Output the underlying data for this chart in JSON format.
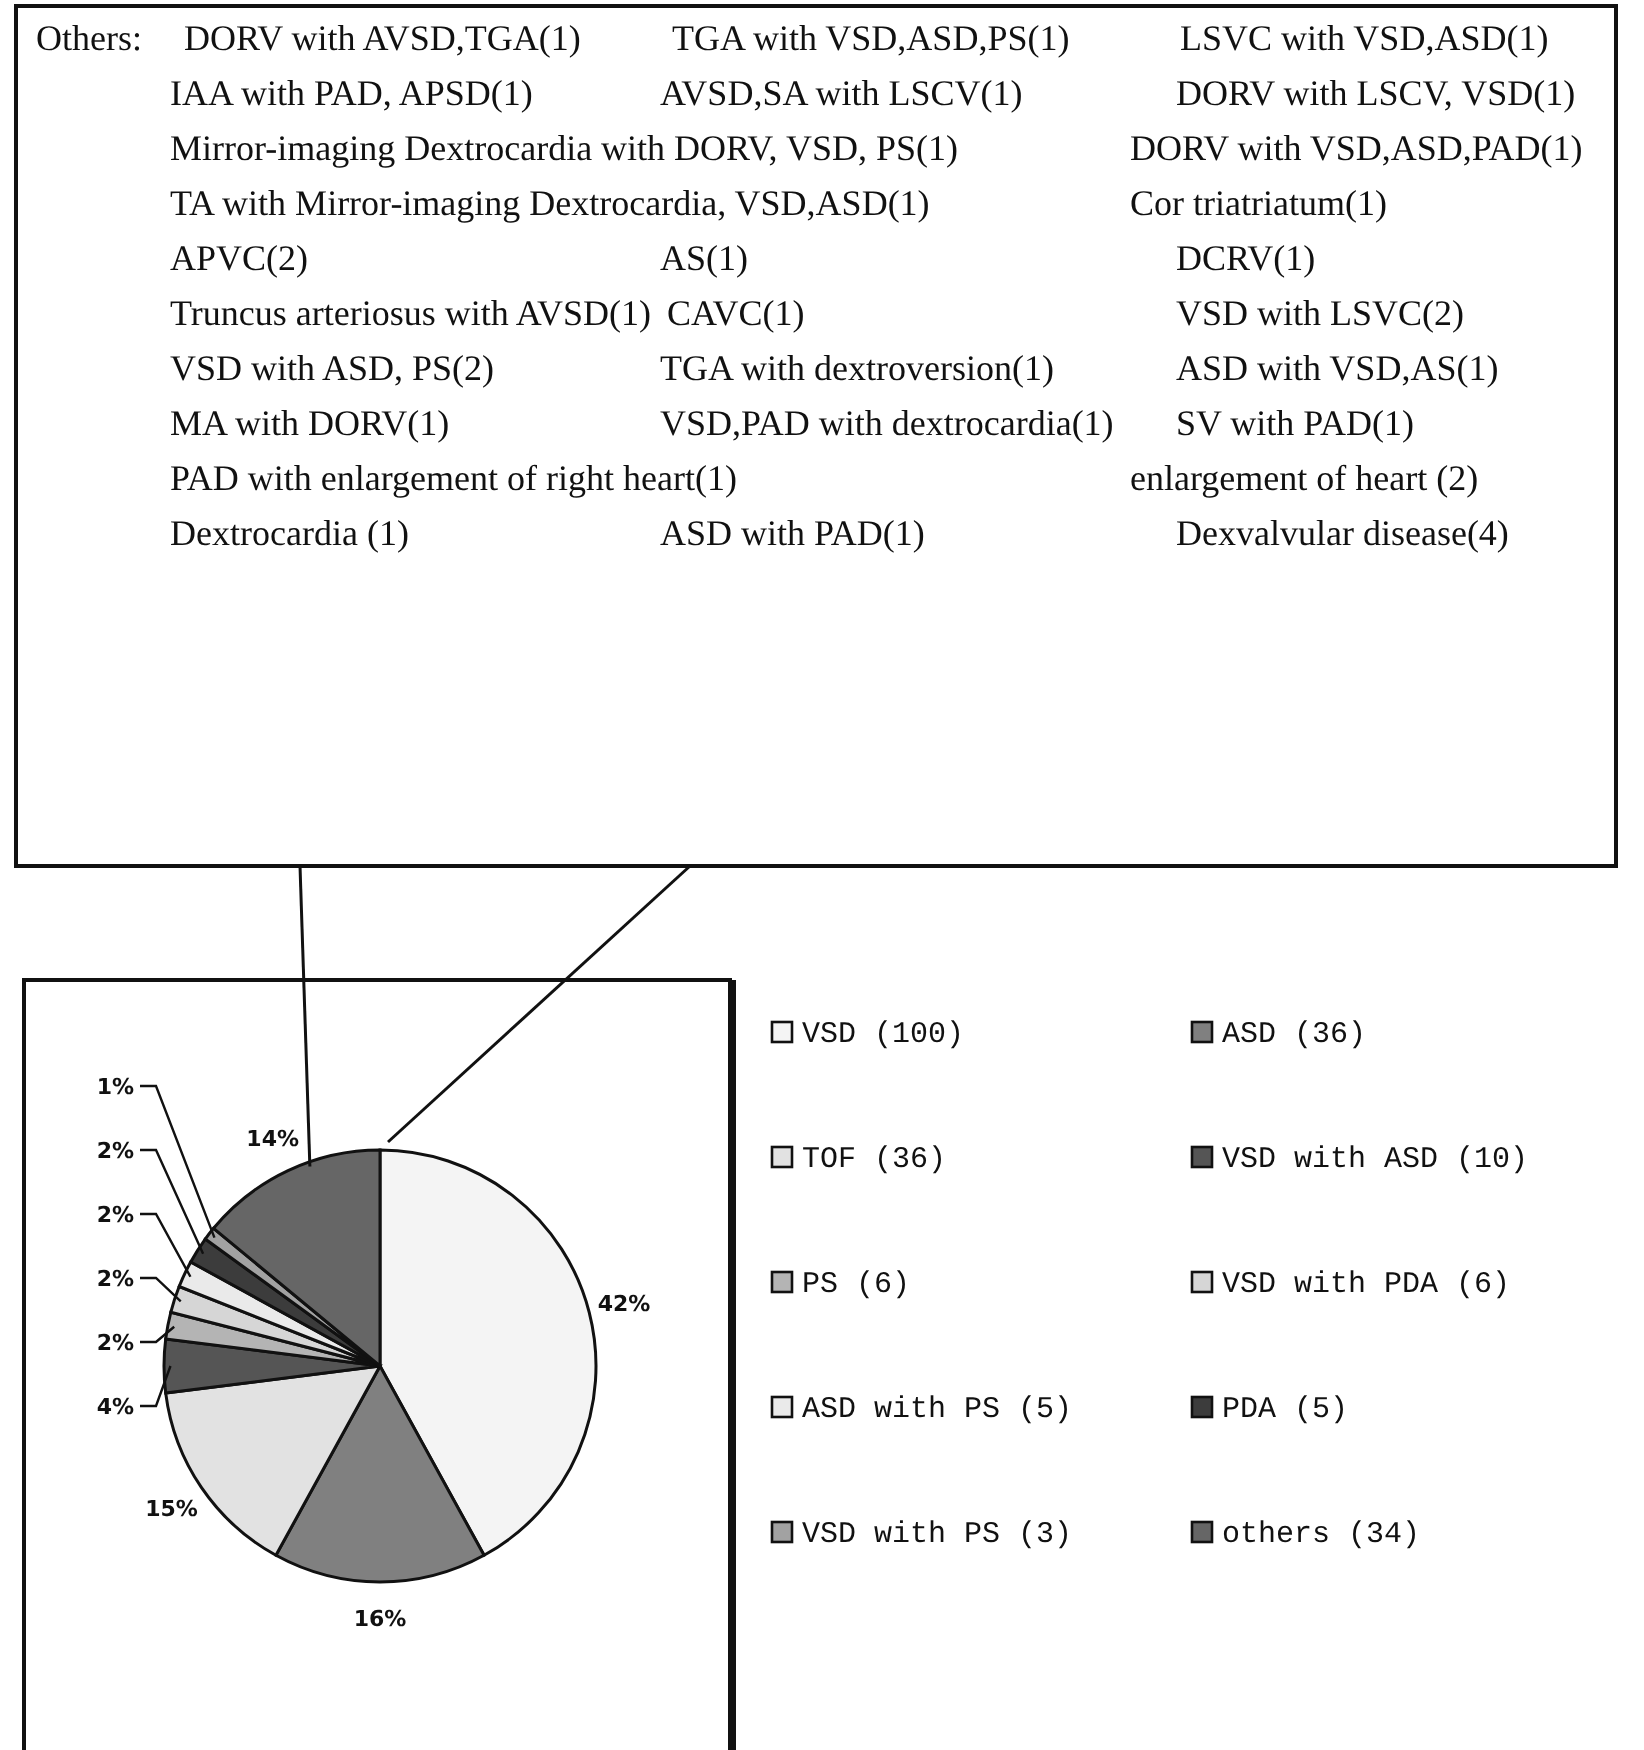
{
  "chart_data": {
    "type": "pie",
    "categories": [
      "VSD (100)",
      "ASD (36)",
      "TOF (36)",
      "VSD with ASD (10)",
      "PS (6)",
      "VSD with PDA (6)",
      "ASD with PS (5)",
      "PDA (5)",
      "VSD with PS (3)",
      "others (34)"
    ],
    "values": [
      42,
      16,
      15,
      4,
      2,
      2,
      2,
      2,
      1,
      14
    ],
    "colors": [
      "#f4f4f4",
      "#808080",
      "#e2e2e2",
      "#555555",
      "#b4b4b4",
      "#d6d6d6",
      "#eaeaea",
      "#3c3c3c",
      "#a2a2a2",
      "#666666"
    ],
    "value_labels": [
      "42%",
      "16%",
      "15%",
      "4%",
      "2%",
      "2%",
      "2%",
      "2%",
      "1%",
      "14%"
    ],
    "legend": "right",
    "annotations": [
      "Others:",
      "DORV with AVSD,TGA(1)",
      "TGA with VSD,ASD,PS(1)",
      "LSVC with VSD,ASD(1)",
      "IAA with PAD, APSD(1)",
      "AVSD,SA with LSCV(1)",
      "DORV with LSCV, VSD(1)",
      "Mirror-imaging Dextrocardia with DORV, VSD, PS(1)",
      "DORV with VSD,ASD,PAD(1)",
      "TA with Mirror-imaging Dextrocardia, VSD,ASD(1)",
      "Cor triatriatum(1)",
      "APVC(2)",
      "AS(1)",
      "DCRV(1)",
      "Truncus arteriosus with AVSD(1)",
      "CAVC(1)",
      "VSD with LSVC(2)",
      "VSD with ASD, PS(2)",
      "TGA with dextroversion(1)",
      "ASD with VSD,AS(1)",
      "MA with DORV(1)",
      "VSD,PAD with dextrocardia(1)",
      "SV with PAD(1)",
      "PAD with enlargement of right heart(1)",
      "enlargement of heart (2)",
      "Dextrocardia (1)",
      "ASD with PAD(1)",
      "Dexvalvular disease(4)"
    ]
  }
}
